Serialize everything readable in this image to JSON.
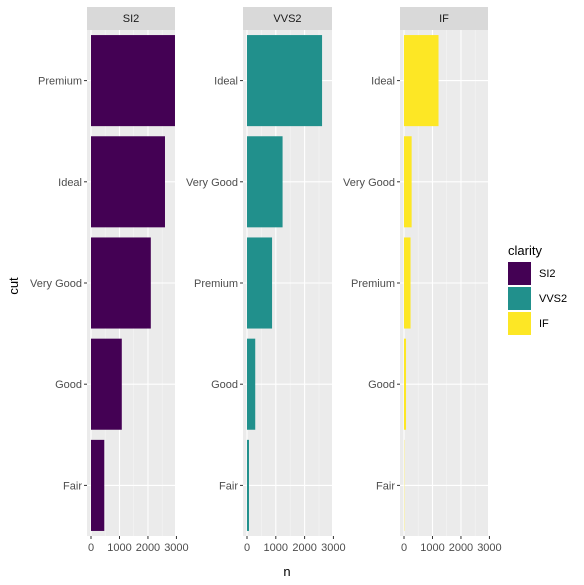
{
  "chart_data": {
    "type": "bar",
    "orientation": "horizontal",
    "xlabel": "n",
    "ylabel": "cut",
    "xlim": [
      0,
      3000
    ],
    "x_ticks": [
      0,
      1000,
      2000,
      3000
    ],
    "x_tick_labels": [
      "0",
      "1000",
      "2000",
      "3000"
    ],
    "grid": true,
    "legend": {
      "title": "clarity",
      "position": "right",
      "entries": [
        {
          "name": "SI2",
          "color": "#440154"
        },
        {
          "name": "VVS2",
          "color": "#21908C"
        },
        {
          "name": "IF",
          "color": "#FDE725"
        }
      ]
    },
    "facets": [
      {
        "name": "SI2",
        "color": "#440154",
        "categories": [
          "Premium",
          "Ideal",
          "Very Good",
          "Good",
          "Fair"
        ],
        "values": [
          2949,
          2598,
          2100,
          1081,
          466
        ]
      },
      {
        "name": "VVS2",
        "color": "#21908C",
        "categories": [
          "Ideal",
          "Very Good",
          "Premium",
          "Good",
          "Fair"
        ],
        "values": [
          2606,
          1235,
          870,
          286,
          69
        ]
      },
      {
        "name": "IF",
        "color": "#FDE725",
        "categories": [
          "Ideal",
          "Very Good",
          "Premium",
          "Good",
          "Fair"
        ],
        "values": [
          1212,
          268,
          230,
          71,
          9
        ]
      }
    ]
  }
}
